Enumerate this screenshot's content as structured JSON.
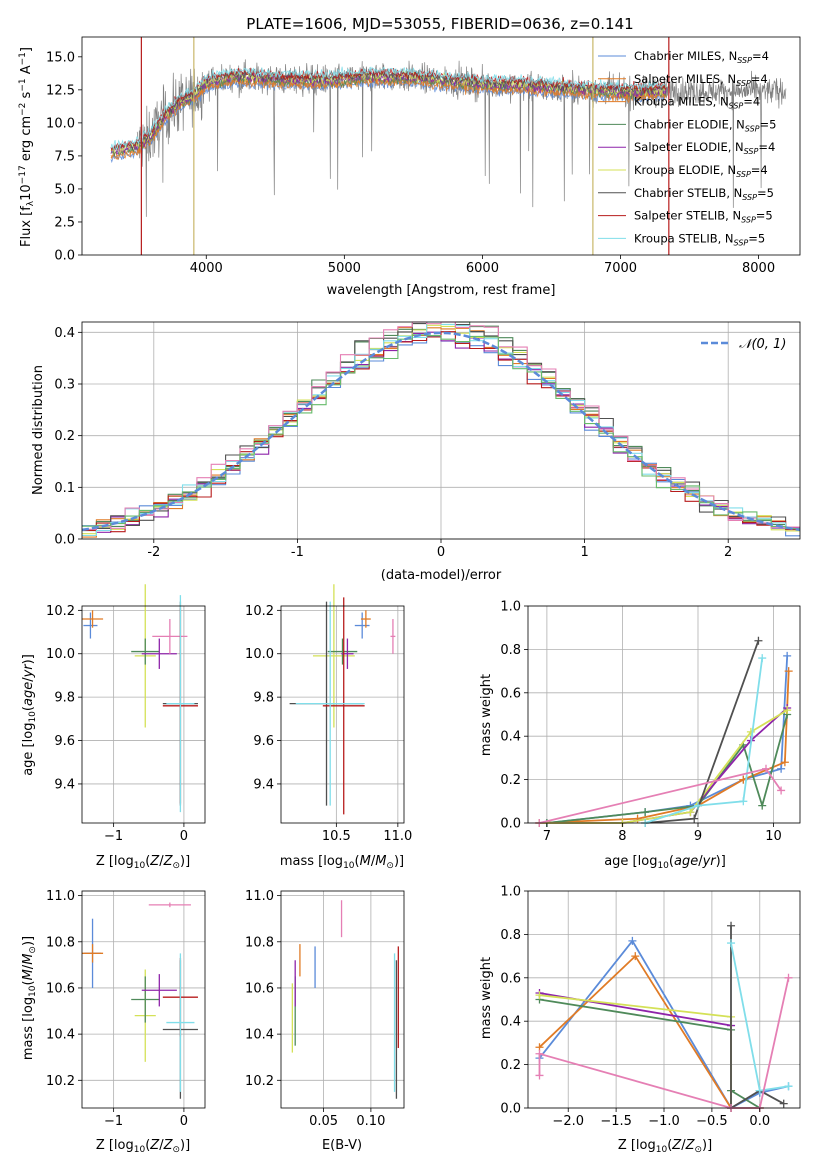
{
  "figure": {
    "title": "PLATE=1606, MJD=53055, FIBERID=0636, z=0.141"
  },
  "colors": {
    "Chabrier MILES": "#5b8bd9",
    "Salpeter MILES": "#e07b26",
    "Kroupa MILES": "#e07b26",
    "Chabrier ELODIE": "#4f8a5a",
    "Salpeter ELODIE": "#8e24aa",
    "Kroupa ELODIE": "#d4e157",
    "Chabrier STELIB": "#505050",
    "Salpeter STELIB": "#b71c1c",
    "Kroupa STELIB": "#80deea",
    "pink": "#e57fb4",
    "green": "#66bb6a",
    "gridColor": "#b0b0b0",
    "normal": "#5b8bd9"
  },
  "chart_data": [
    {
      "id": "spectrum",
      "type": "line",
      "xlabel": "wavelength [Angstrom, rest frame]",
      "ylabel": "Flux [f_λ 10^-17 erg cm^-2 s^-1 A^-1]",
      "xlim": [
        3100,
        8300
      ],
      "ylim": [
        0,
        16.5
      ],
      "xticks": [
        4000,
        5000,
        6000,
        7000,
        8000
      ],
      "yticks": [
        0.0,
        2.5,
        5.0,
        7.5,
        10.0,
        12.5,
        15.0
      ],
      "ytick_labels": [
        "0.0",
        "2.5",
        "5.0",
        "7.5",
        "10.0",
        "12.5",
        "15.0"
      ],
      "legend_position": "right",
      "legend": [
        {
          "label": "Chabrier MILES, N_SSP=4",
          "color": "#5b8bd9"
        },
        {
          "label": "Salpeter MILES, N_SSP=4",
          "color": "#e07b26"
        },
        {
          "label": "Kroupa MILES, N_SSP=4",
          "color": "#e07b26"
        },
        {
          "label": "Chabrier ELODIE, N_SSP=5",
          "color": "#4f8a5a"
        },
        {
          "label": "Salpeter ELODIE, N_SSP=4",
          "color": "#8e24aa"
        },
        {
          "label": "Kroupa ELODIE, N_SSP=4",
          "color": "#d4e157"
        },
        {
          "label": "Chabrier STELIB, N_SSP=5",
          "color": "#505050"
        },
        {
          "label": "Salpeter STELIB, N_SSP=5",
          "color": "#b71c1c"
        },
        {
          "label": "Kroupa STELIB, N_SSP=5",
          "color": "#80deea"
        }
      ],
      "continuum": [
        [
          3310,
          7.8
        ],
        [
          3500,
          8.2
        ],
        [
          3600,
          9.0
        ],
        [
          3700,
          10.5
        ],
        [
          3800,
          11.5
        ],
        [
          3900,
          12.0
        ],
        [
          4000,
          13.0
        ],
        [
          4200,
          13.5
        ],
        [
          4500,
          13.3
        ],
        [
          4800,
          13.2
        ],
        [
          5000,
          13.3
        ],
        [
          5200,
          13.5
        ],
        [
          5500,
          13.4
        ],
        [
          5800,
          13.1
        ],
        [
          6000,
          12.9
        ],
        [
          6300,
          12.8
        ],
        [
          6600,
          12.6
        ],
        [
          6900,
          12.4
        ],
        [
          7100,
          12.3
        ],
        [
          7300,
          12.4
        ]
      ],
      "model_range": [
        3310,
        7330
      ],
      "data_range": [
        3500,
        8200
      ],
      "drop_lines": [
        {
          "x": 3530,
          "color": "#b71c1c"
        },
        {
          "x": 3910,
          "color": "#c9b76a"
        },
        {
          "x": 6800,
          "color": "#c9b76a"
        },
        {
          "x": 7350,
          "color": "#b71c1c"
        }
      ]
    },
    {
      "id": "residuals",
      "type": "area",
      "xlabel": "(data-model)/error",
      "ylabel": "Normed distribution",
      "xlim": [
        -2.5,
        2.5
      ],
      "ylim": [
        0,
        0.42
      ],
      "xticks": [
        -2,
        -1,
        0,
        1,
        2
      ],
      "yticks": [
        0.0,
        0.1,
        0.2,
        0.3,
        0.4
      ],
      "ytick_labels": [
        "0.0",
        "0.1",
        "0.2",
        "0.3",
        "0.4"
      ],
      "legend": [
        {
          "label": "𝒩(0, 1)",
          "style": "dashed"
        }
      ],
      "bin_width": 0.1,
      "n_histograms": 10
    },
    {
      "id": "age_vs_Z",
      "type": "scatter",
      "xlabel": "Z [log10(Z/Z⊙)]",
      "ylabel": "age  [log10(age/yr)]",
      "xlim": [
        -1.45,
        0.3
      ],
      "ylim": [
        9.22,
        10.22
      ],
      "xticks": [
        -1,
        0
      ],
      "xtick_labels": [
        "−1",
        "0"
      ],
      "yticks": [
        9.4,
        9.6,
        9.8,
        10.0,
        10.2
      ],
      "ytick_labels": [
        "9.4",
        "9.6",
        "9.8",
        "10.0",
        "10.2"
      ],
      "points": [
        {
          "x": -1.33,
          "y": 10.13,
          "xerr": 0.1,
          "yerr": 0.06,
          "color": "#5b8bd9"
        },
        {
          "x": -1.3,
          "y": 10.16,
          "xerr": 0.15,
          "yerr": 0.04,
          "color": "#e07b26"
        },
        {
          "x": -0.55,
          "y": 9.99,
          "xerr": 0.15,
          "yerr": 0.33,
          "color": "#d4e157"
        },
        {
          "x": -0.55,
          "y": 10.01,
          "xerr": 0.2,
          "yerr": 0.06,
          "color": "#4f8a5a"
        },
        {
          "x": -0.35,
          "y": 10.0,
          "xerr": 0.25,
          "yerr": 0.07,
          "color": "#8e24aa"
        },
        {
          "x": -0.2,
          "y": 10.08,
          "xerr": 0.25,
          "yerr": 0.08,
          "color": "#e57fb4"
        },
        {
          "x": -0.05,
          "y": 9.77,
          "xerr": 0.25,
          "yerr": 0.47,
          "color": "#505050"
        },
        {
          "x": -0.05,
          "y": 9.76,
          "xerr": 0.25,
          "yerr": 0.45,
          "color": "#b71c1c"
        },
        {
          "x": -0.05,
          "y": 9.77,
          "xerr": 0.2,
          "yerr": 0.5,
          "color": "#80deea"
        }
      ]
    },
    {
      "id": "age_vs_mass",
      "type": "scatter",
      "xlabel": "mass [log10(M/M⊙)]",
      "ylabel": "",
      "xlim": [
        10.05,
        11.05
      ],
      "ylim": [
        9.22,
        10.22
      ],
      "xticks": [
        10.5,
        11.0
      ],
      "xtick_labels": [
        "10.5",
        "11.0"
      ],
      "yticks": [
        9.4,
        9.6,
        9.8,
        10.0,
        10.2
      ],
      "ytick_labels": [
        "9.4",
        "9.6",
        "9.8",
        "10.0",
        "10.2"
      ],
      "points": [
        {
          "x": 10.71,
          "y": 10.13,
          "xerr": 0.06,
          "yerr": 0.06,
          "color": "#5b8bd9"
        },
        {
          "x": 10.74,
          "y": 10.16,
          "xerr": 0.04,
          "yerr": 0.04,
          "color": "#e07b26"
        },
        {
          "x": 10.48,
          "y": 9.99,
          "xerr": 0.17,
          "yerr": 0.33,
          "color": "#d4e157"
        },
        {
          "x": 10.55,
          "y": 10.01,
          "xerr": 0.12,
          "yerr": 0.06,
          "color": "#4f8a5a"
        },
        {
          "x": 10.59,
          "y": 10.0,
          "xerr": 0.05,
          "yerr": 0.07,
          "color": "#8e24aa"
        },
        {
          "x": 10.96,
          "y": 10.08,
          "xerr": 0.02,
          "yerr": 0.08,
          "color": "#e57fb4"
        },
        {
          "x": 10.42,
          "y": 9.77,
          "xerr": 0.3,
          "yerr": 0.47,
          "color": "#505050"
        },
        {
          "x": 10.56,
          "y": 9.76,
          "xerr": 0.17,
          "yerr": 0.5,
          "color": "#b71c1c"
        },
        {
          "x": 10.45,
          "y": 9.77,
          "xerr": 0.28,
          "yerr": 0.47,
          "color": "#80deea"
        }
      ]
    },
    {
      "id": "weight_vs_age",
      "type": "line",
      "xlabel": "age  [log10(age/yr)]",
      "ylabel": "mass weight",
      "xlim": [
        6.75,
        10.35
      ],
      "ylim": [
        0,
        1.0
      ],
      "xticks": [
        7,
        8,
        9,
        10
      ],
      "yticks": [
        0.0,
        0.2,
        0.4,
        0.6,
        0.8,
        1.0
      ],
      "ytick_labels": [
        "0.0",
        "0.2",
        "0.4",
        "0.6",
        "0.8",
        "1.0"
      ],
      "series": [
        {
          "color": "#5b8bd9",
          "x": [
            7.0,
            8.3,
            8.9,
            9.6,
            10.1,
            10.18
          ],
          "y": [
            0.0,
            0.05,
            0.08,
            0.2,
            0.25,
            0.77
          ]
        },
        {
          "color": "#e07b26",
          "x": [
            6.9,
            8.2,
            9.0,
            9.6,
            10.15,
            10.2
          ],
          "y": [
            0.0,
            0.02,
            0.08,
            0.2,
            0.28,
            0.7
          ]
        },
        {
          "color": "#4f8a5a",
          "x": [
            7.0,
            8.3,
            9.0,
            9.6,
            9.85,
            10.18
          ],
          "y": [
            0.0,
            0.05,
            0.08,
            0.36,
            0.08,
            0.5
          ]
        },
        {
          "color": "#8e24aa",
          "x": [
            6.9,
            8.0,
            8.9,
            9.7,
            10.18
          ],
          "y": [
            0.0,
            0.0,
            0.05,
            0.38,
            0.53
          ]
        },
        {
          "color": "#d4e157",
          "x": [
            6.9,
            8.0,
            8.9,
            9.7,
            10.18
          ],
          "y": [
            0.0,
            0.0,
            0.05,
            0.42,
            0.52
          ]
        },
        {
          "color": "#505050",
          "x": [
            8.3,
            8.95,
            9.8
          ],
          "y": [
            0.0,
            0.02,
            0.84
          ]
        },
        {
          "color": "#80deea",
          "x": [
            8.3,
            9.0,
            9.6,
            9.85
          ],
          "y": [
            0.0,
            0.08,
            0.1,
            0.76
          ]
        },
        {
          "color": "#e57fb4",
          "x": [
            6.9,
            9.9,
            10.1
          ],
          "y": [
            0.0,
            0.25,
            0.15
          ]
        }
      ]
    },
    {
      "id": "mass_vs_Z",
      "type": "scatter",
      "xlabel": "Z [log10(Z/Z⊙)]",
      "ylabel": "mass [log10(M/M⊙)]",
      "xlim": [
        -1.45,
        0.3
      ],
      "ylim": [
        10.08,
        11.02
      ],
      "xticks": [
        -1,
        0
      ],
      "xtick_labels": [
        "−1",
        "0"
      ],
      "yticks": [
        10.2,
        10.4,
        10.6,
        10.8,
        11.0
      ],
      "ytick_labels": [
        "10.2",
        "10.4",
        "10.6",
        "10.8",
        "11.0"
      ],
      "points": [
        {
          "x": -1.3,
          "y": 10.75,
          "xerr": 0.12,
          "yerr": 0.15,
          "color": "#5b8bd9"
        },
        {
          "x": -1.3,
          "y": 10.75,
          "xerr": 0.15,
          "yerr": 0.04,
          "color": "#e07b26"
        },
        {
          "x": -0.55,
          "y": 10.48,
          "xerr": 0.15,
          "yerr": 0.2,
          "color": "#d4e157"
        },
        {
          "x": -0.55,
          "y": 10.55,
          "xerr": 0.2,
          "yerr": 0.1,
          "color": "#4f8a5a"
        },
        {
          "x": -0.35,
          "y": 10.59,
          "xerr": 0.25,
          "yerr": 0.07,
          "color": "#8e24aa"
        },
        {
          "x": -0.2,
          "y": 10.96,
          "xerr": 0.3,
          "yerr": 0.01,
          "color": "#e57fb4"
        },
        {
          "x": -0.05,
          "y": 10.42,
          "xerr": 0.25,
          "yerr": 0.3,
          "color": "#505050"
        },
        {
          "x": -0.05,
          "y": 10.56,
          "xerr": 0.25,
          "yerr": 0.17,
          "color": "#b71c1c"
        },
        {
          "x": -0.05,
          "y": 10.45,
          "xerr": 0.2,
          "yerr": 0.3,
          "color": "#80deea"
        }
      ]
    },
    {
      "id": "mass_vs_ebv",
      "type": "scatter",
      "xlabel": "E(B-V)",
      "ylabel": "",
      "xlim": [
        0.005,
        0.135
      ],
      "ylim": [
        10.08,
        11.02
      ],
      "xticks": [
        0.05,
        0.1
      ],
      "xtick_labels": [
        "0.05",
        "0.10"
      ],
      "yticks": [
        10.2,
        10.4,
        10.6,
        10.8,
        11.0
      ],
      "ytick_labels": [
        "10.2",
        "10.4",
        "10.6",
        "10.8",
        "11.0"
      ],
      "points": [
        {
          "x": 0.041,
          "y": 10.69,
          "yerr": 0.09,
          "color": "#5b8bd9"
        },
        {
          "x": 0.025,
          "y": 10.72,
          "yerr": 0.07,
          "color": "#e07b26"
        },
        {
          "x": 0.017,
          "y": 10.47,
          "yerr": 0.15,
          "color": "#d4e157"
        },
        {
          "x": 0.02,
          "y": 10.5,
          "yerr": 0.15,
          "color": "#4f8a5a"
        },
        {
          "x": 0.02,
          "y": 10.62,
          "yerr": 0.1,
          "color": "#8e24aa"
        },
        {
          "x": 0.069,
          "y": 10.9,
          "yerr": 0.08,
          "color": "#e57fb4"
        },
        {
          "x": 0.127,
          "y": 10.42,
          "yerr": 0.3,
          "color": "#505050"
        },
        {
          "x": 0.129,
          "y": 10.56,
          "yerr": 0.22,
          "color": "#b71c1c"
        },
        {
          "x": 0.125,
          "y": 10.45,
          "yerr": 0.3,
          "color": "#80deea"
        }
      ]
    },
    {
      "id": "weight_vs_Z",
      "type": "line",
      "xlabel": "Z [log10(Z/Z⊙)]",
      "ylabel": "mass weight",
      "xlim": [
        -2.42,
        0.42
      ],
      "ylim": [
        0,
        1.0
      ],
      "xticks": [
        -2.0,
        -1.5,
        -1.0,
        -0.5,
        0.0
      ],
      "xtick_labels": [
        "−2.0",
        "−1.5",
        "−1.0",
        "−0.5",
        "0.0"
      ],
      "yticks": [
        0.0,
        0.2,
        0.4,
        0.6,
        0.8,
        1.0
      ],
      "ytick_labels": [
        "0.0",
        "0.2",
        "0.4",
        "0.6",
        "0.8",
        "1.0"
      ],
      "series": [
        {
          "color": "#5b8bd9",
          "x": [
            -2.3,
            -1.33,
            -0.3,
            0.0,
            0.3
          ],
          "y": [
            0.23,
            0.77,
            0.0,
            0.07,
            0.1
          ]
        },
        {
          "color": "#e07b26",
          "x": [
            -2.3,
            -1.3,
            -0.3,
            0.0
          ],
          "y": [
            0.28,
            0.7,
            0.0,
            0.0
          ]
        },
        {
          "color": "#4f8a5a",
          "x": [
            -2.3,
            -0.3,
            -0.3,
            0.0
          ],
          "y": [
            0.5,
            0.36,
            0.08,
            0.0
          ]
        },
        {
          "color": "#8e24aa",
          "x": [
            -2.3,
            -0.3,
            -0.3,
            0.0
          ],
          "y": [
            0.53,
            0.38,
            0.0,
            0.0
          ]
        },
        {
          "color": "#d4e157",
          "x": [
            -2.3,
            -0.3,
            -0.3,
            0.0
          ],
          "y": [
            0.52,
            0.42,
            0.0,
            0.0
          ]
        },
        {
          "color": "#505050",
          "x": [
            -0.3,
            -0.3,
            0.0,
            0.25
          ],
          "y": [
            0.84,
            0.0,
            0.08,
            0.02
          ]
        },
        {
          "color": "#80deea",
          "x": [
            -0.3,
            0.0,
            0.3
          ],
          "y": [
            0.76,
            0.08,
            0.1
          ]
        },
        {
          "color": "#e57fb4",
          "x": [
            -2.3,
            -2.3,
            -0.3,
            0.0,
            0.3
          ],
          "y": [
            0.15,
            0.25,
            0.0,
            0.0,
            0.6
          ]
        }
      ]
    }
  ]
}
